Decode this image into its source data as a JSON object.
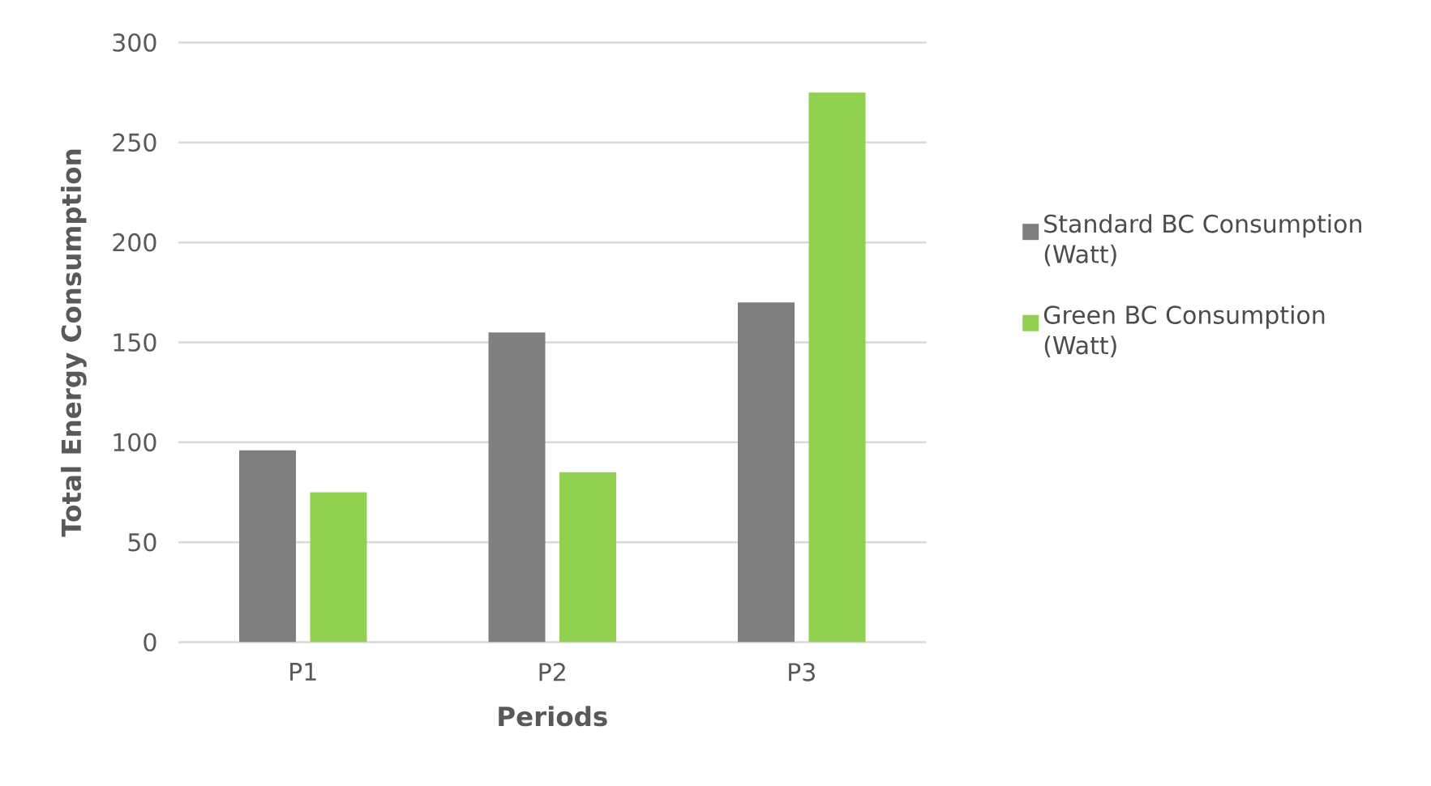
{
  "chart_data": {
    "type": "bar",
    "xlabel": "Periods",
    "ylabel": "Total Energy Consumption",
    "categories": [
      "P1",
      "P2",
      "P3"
    ],
    "series": [
      {
        "name": "Standard BC Consumption (Watt)",
        "color": "#7f7f7f",
        "values": [
          96,
          155,
          170
        ]
      },
      {
        "name": "Green BC Consumption (Watt)",
        "color": "#92d050",
        "values": [
          75,
          85,
          275
        ]
      }
    ],
    "ylim": [
      0,
      300
    ],
    "yticks": [
      0,
      50,
      100,
      150,
      200,
      250,
      300
    ],
    "grid": "y",
    "legend": "right"
  }
}
